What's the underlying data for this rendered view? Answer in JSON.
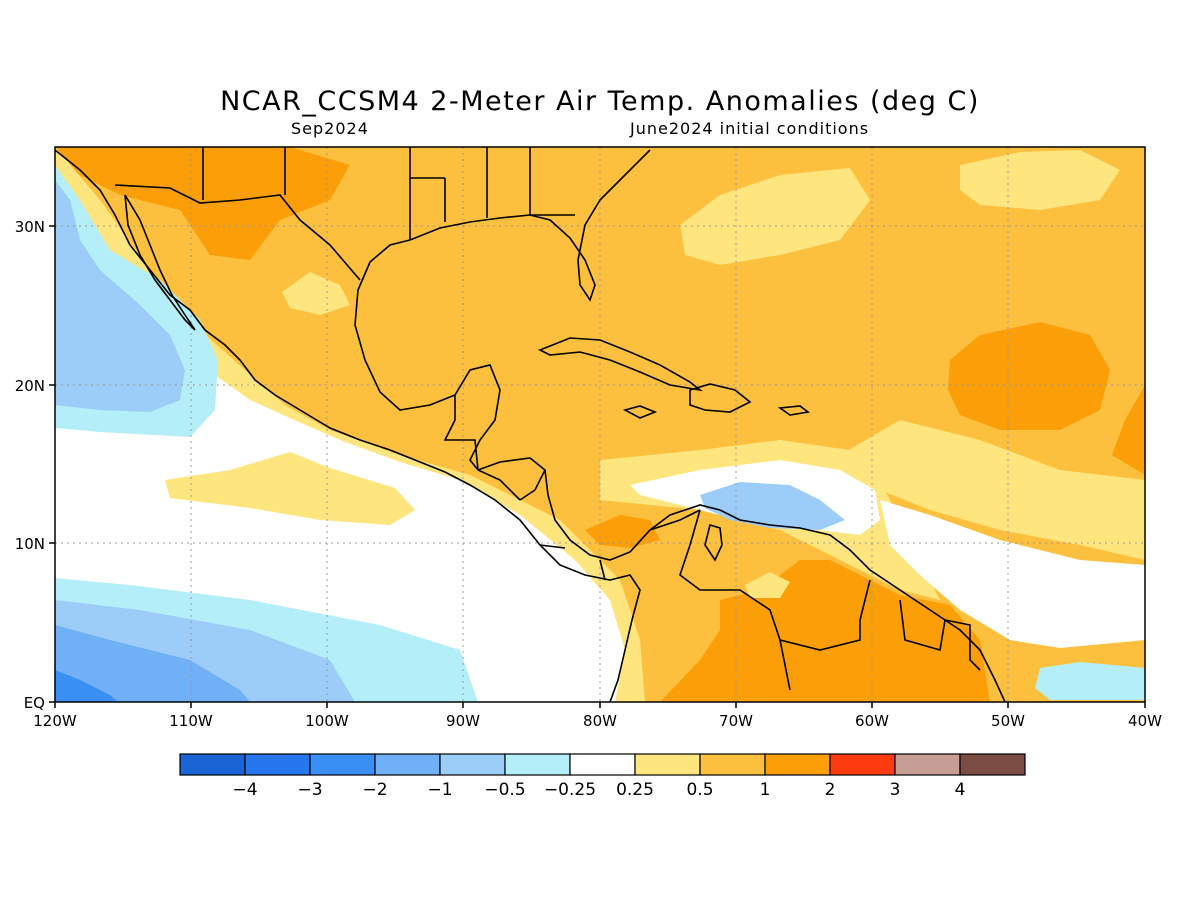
{
  "header": {
    "title": "NCAR_CCSM4 2-Meter Air Temp. Anomalies (deg C)",
    "valid_month": "Sep2024",
    "init": "June2024 initial conditions"
  },
  "axes": {
    "lon_ticks": [
      "120W",
      "110W",
      "100W",
      "90W",
      "80W",
      "70W",
      "60W",
      "50W",
      "40W"
    ],
    "lat_ticks": [
      "EQ",
      "10N",
      "20N",
      "30N"
    ],
    "lon_range": [
      -120,
      -40
    ],
    "lat_range": [
      0,
      35
    ],
    "grid": true
  },
  "colorbar": {
    "labels": [
      "-4",
      "-3",
      "-2",
      "-1",
      "-0.5",
      "-0.25",
      "0.25",
      "0.5",
      "1",
      "2",
      "3",
      "4"
    ],
    "colors": [
      "#1a64d6",
      "#2677ee",
      "#3a8ff5",
      "#6fb0f6",
      "#9cccf8",
      "#b4eef8",
      "#ffffff",
      "#ffe57d",
      "#fdbf3e",
      "#fb9e08",
      "#fb3a10",
      "#c79e96",
      "#7b4c44"
    ]
  },
  "map": {
    "region": "Caribbean / Central America / Gulf of Mexico",
    "palette": {
      "neg2": "#3a8ff5",
      "neg1": "#6fb0f6",
      "neg05": "#9cccf8",
      "neg025": "#b4eef8",
      "neutral": "#ffffff",
      "pos025": "#ffe57d",
      "pos05": "#fdbf3e",
      "pos1": "#fb9e08"
    }
  }
}
